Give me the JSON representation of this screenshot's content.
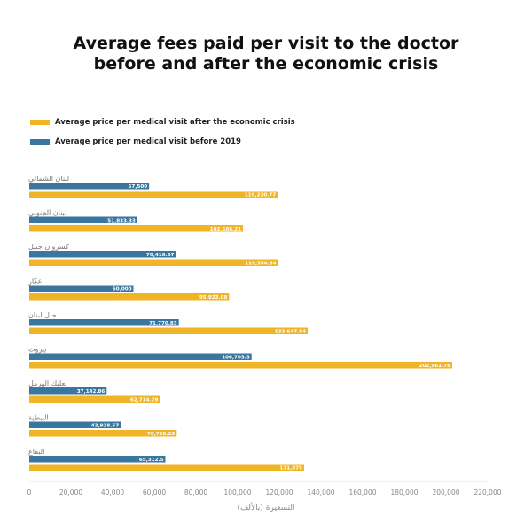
{
  "chart_data": {
    "type": "bar",
    "orientation": "horizontal",
    "title_lines": [
      "Average fees paid per visit to the doctor",
      "before and after the economic crisis"
    ],
    "xlabel": "التسعيرة (بالألف)",
    "xlim": [
      0,
      220000
    ],
    "xticks": [
      0,
      20000,
      40000,
      60000,
      80000,
      100000,
      120000,
      140000,
      160000,
      180000,
      200000,
      220000
    ],
    "xtick_labels": [
      "0",
      "20,000",
      "40,000",
      "60,000",
      "80,000",
      "100,000",
      "120,000",
      "140,000",
      "160,000",
      "180,000",
      "200,000",
      "220,000"
    ],
    "grid": false,
    "legend_position": "top-left",
    "categories": [
      "لبنان الشمالي",
      "لبنان الجنوبي",
      "كسروان جبيل",
      "عكار",
      "جبل لبنان",
      "بيروت",
      "بعلبك الهرمل",
      "النبطية",
      "البقاع"
    ],
    "series": [
      {
        "name": "Average price per medical visit before 2019",
        "color": "#3a77a0",
        "values": [
          57500,
          51833.33,
          70416.67,
          50000,
          71770.83,
          106703.3,
          37142.86,
          43928.57,
          65312.5
        ],
        "value_labels": [
          "57,500",
          "51,833.33",
          "70,416.67",
          "50,000",
          "71,770.83",
          "106,703.3",
          "37,142.86",
          "43,928.57",
          "65,312.5"
        ]
      },
      {
        "name": "Average price per medical visit after the economic crisis",
        "color": "#f0b427",
        "values": [
          119230.77,
          102586.21,
          119354.84,
          95923.08,
          133647.54,
          202961.78,
          62714.29,
          70769.23,
          131875
        ],
        "value_labels": [
          "119,230.77",
          "102,586.21",
          "119,354.84",
          "95,923.08",
          "133,647.54",
          "202,961.78",
          "62,714.29",
          "70,769.23",
          "131,875"
        ]
      }
    ],
    "legend_order": [
      1,
      0
    ]
  }
}
